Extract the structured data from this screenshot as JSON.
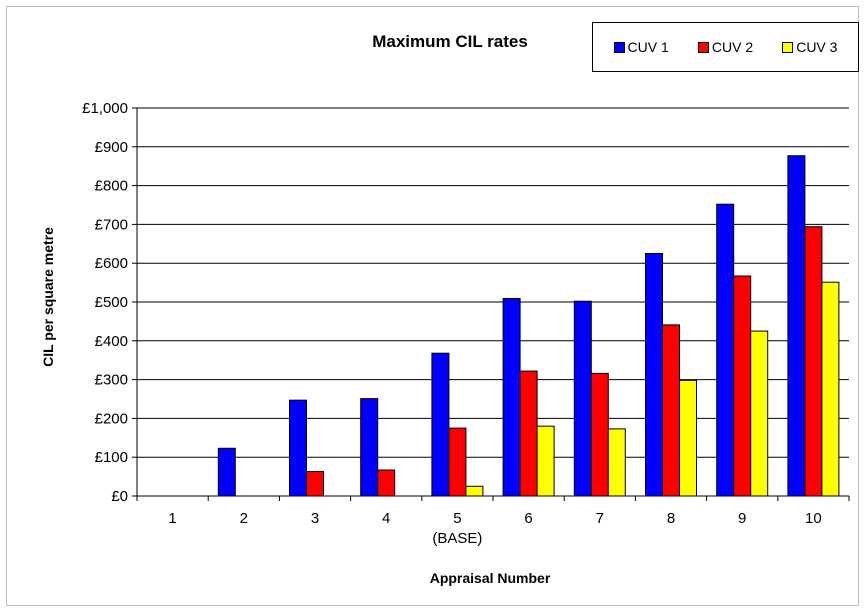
{
  "chart_data": {
    "type": "bar",
    "title": "Maximum  CIL rates",
    "xlabel": "Appraisal Number",
    "ylabel": "CIL per square metre",
    "categories": [
      "1",
      "2",
      "3",
      "4",
      "5",
      "6",
      "7",
      "8",
      "9",
      "10"
    ],
    "category_sublabels": [
      "",
      "",
      "",
      "",
      "(BASE)",
      "",
      "",
      "",
      "",
      ""
    ],
    "y_ticks": [
      "£0",
      "£100",
      "£200",
      "£300",
      "£400",
      "£500",
      "£600",
      "£700",
      "£800",
      "£900",
      "£1,000"
    ],
    "ylim": [
      0,
      1000
    ],
    "grid": true,
    "legend_position": "top-right",
    "series": [
      {
        "name": "CUV 1",
        "color": "#0000ff",
        "values": [
          0,
          123,
          247,
          251,
          368,
          509,
          502,
          625,
          752,
          877
        ]
      },
      {
        "name": "CUV 2",
        "color": "#ff0000",
        "values": [
          0,
          0,
          63,
          67,
          175,
          322,
          316,
          441,
          567,
          694
        ]
      },
      {
        "name": "CUV 3",
        "color": "#ffff00",
        "values": [
          0,
          0,
          0,
          0,
          25,
          180,
          173,
          298,
          425,
          551
        ]
      }
    ]
  }
}
